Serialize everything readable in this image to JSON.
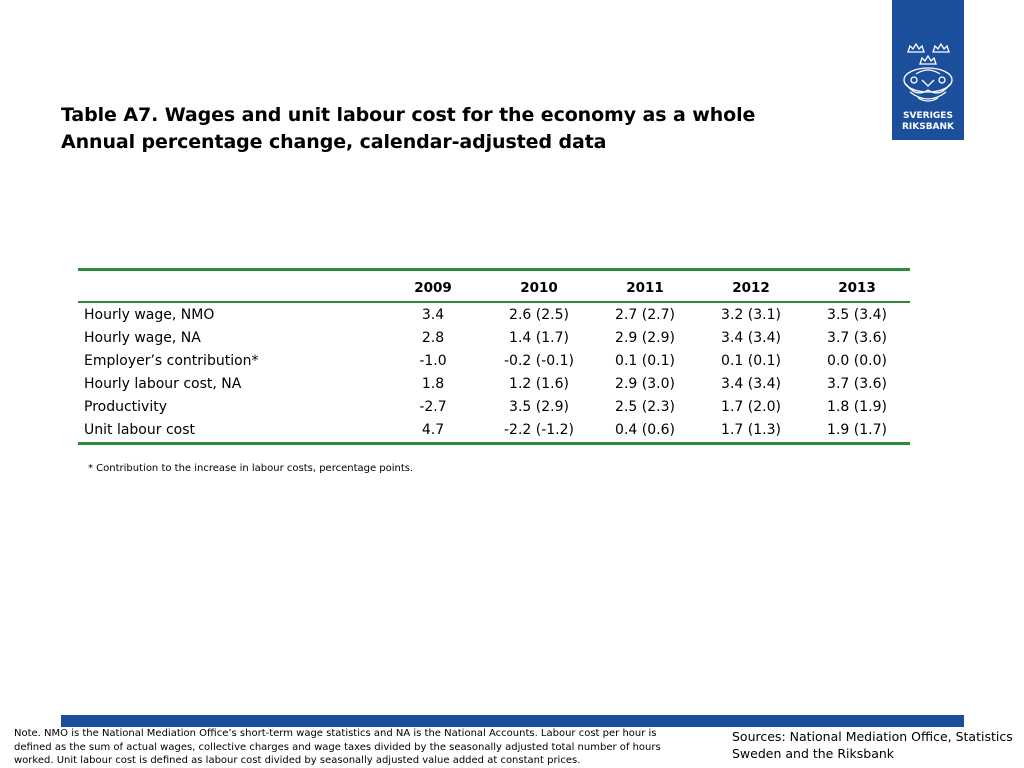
{
  "logo": {
    "line1": "SVERIGES",
    "line2": "RIKSBANK",
    "color": "#1b4f9c"
  },
  "title": {
    "line1": "Table A7. Wages and unit labour cost for the economy as a whole",
    "line2": "Annual percentage change, calendar-adjusted data"
  },
  "table": {
    "headers": [
      "",
      "2009",
      "2010",
      "2011",
      "2012",
      "2013"
    ],
    "rows": [
      {
        "label": "Hourly wage, NMO",
        "values": [
          "3.4",
          "2.6 (2.5)",
          "2.7 (2.7)",
          "3.2 (3.1)",
          "3.5 (3.4)"
        ]
      },
      {
        "label": "Hourly wage, NA",
        "values": [
          "2.8",
          "1.4 (1.7)",
          "2.9 (2.9)",
          "3.4 (3.4)",
          "3.7 (3.6)"
        ]
      },
      {
        "label": "Employer’s contribution*",
        "values": [
          "-1.0",
          "-0.2 (-0.1)",
          "0.1 (0.1)",
          "0.1 (0.1)",
          "0.0 (0.0)"
        ]
      },
      {
        "label": "Hourly labour cost, NA",
        "values": [
          "1.8",
          "1.2 (1.6)",
          "2.9 (3.0)",
          "3.4 (3.4)",
          "3.7 (3.6)"
        ]
      },
      {
        "label": "Productivity",
        "values": [
          "-2.7",
          "3.5 (2.9)",
          "2.5 (2.3)",
          "1.7 (2.0)",
          "1.8 (1.9)"
        ]
      },
      {
        "label": "Unit labour cost",
        "values": [
          "4.7",
          "-2.2 (-1.2)",
          "0.4 (0.6)",
          "1.7 (1.3)",
          "1.9 (1.7)"
        ]
      }
    ],
    "rule_color": "#2e8b3a"
  },
  "footnote": "* Contribution to the increase in labour costs, percentage points.",
  "note": "Note. NMO is the National Mediation Office’s short-term wage statistics and NA is the National Accounts. Labour cost per hour is defined as the sum of actual wages, collective charges and wage taxes divided by the seasonally adjusted total number of hours worked. Unit labour cost is defined as labour cost divided by seasonally adjusted value added at constant prices.",
  "sources": "Sources: National Mediation Office, Statistics Sweden and the Riksbank",
  "bar_color": "#1b4f9c"
}
